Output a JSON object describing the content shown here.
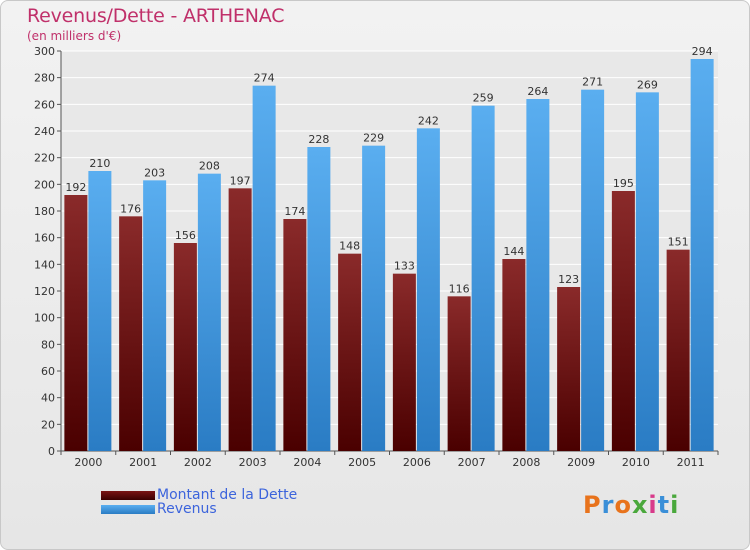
{
  "chart_data": {
    "type": "bar",
    "title": "Revenus/Dette - ARTHENAC",
    "subtitle": "(en milliers d'€)",
    "categories": [
      "2000",
      "2001",
      "2002",
      "2003",
      "2004",
      "2005",
      "2006",
      "2007",
      "2008",
      "2009",
      "2010",
      "2011"
    ],
    "series": [
      {
        "name": "Montant de la Dette",
        "color": "#7a1414",
        "values": [
          192,
          176,
          156,
          197,
          174,
          148,
          133,
          116,
          144,
          123,
          195,
          151
        ]
      },
      {
        "name": "Revenus",
        "color": "#3d9be0",
        "values": [
          210,
          203,
          208,
          274,
          228,
          229,
          242,
          259,
          264,
          271,
          269,
          294
        ]
      }
    ],
    "ylim": [
      0,
      300
    ],
    "yticks": [
      0,
      20,
      40,
      60,
      80,
      100,
      120,
      140,
      160,
      180,
      200,
      220,
      240,
      260,
      280,
      300
    ],
    "grid": true,
    "legend_placement": "bottom-left"
  },
  "logo_text": "Proxiti",
  "logo_colors": [
    "#e8731c",
    "#3a8fd8",
    "#e8731c",
    "#4aa83c",
    "#d83a8a",
    "#3a8fd8",
    "#4aa83c"
  ]
}
